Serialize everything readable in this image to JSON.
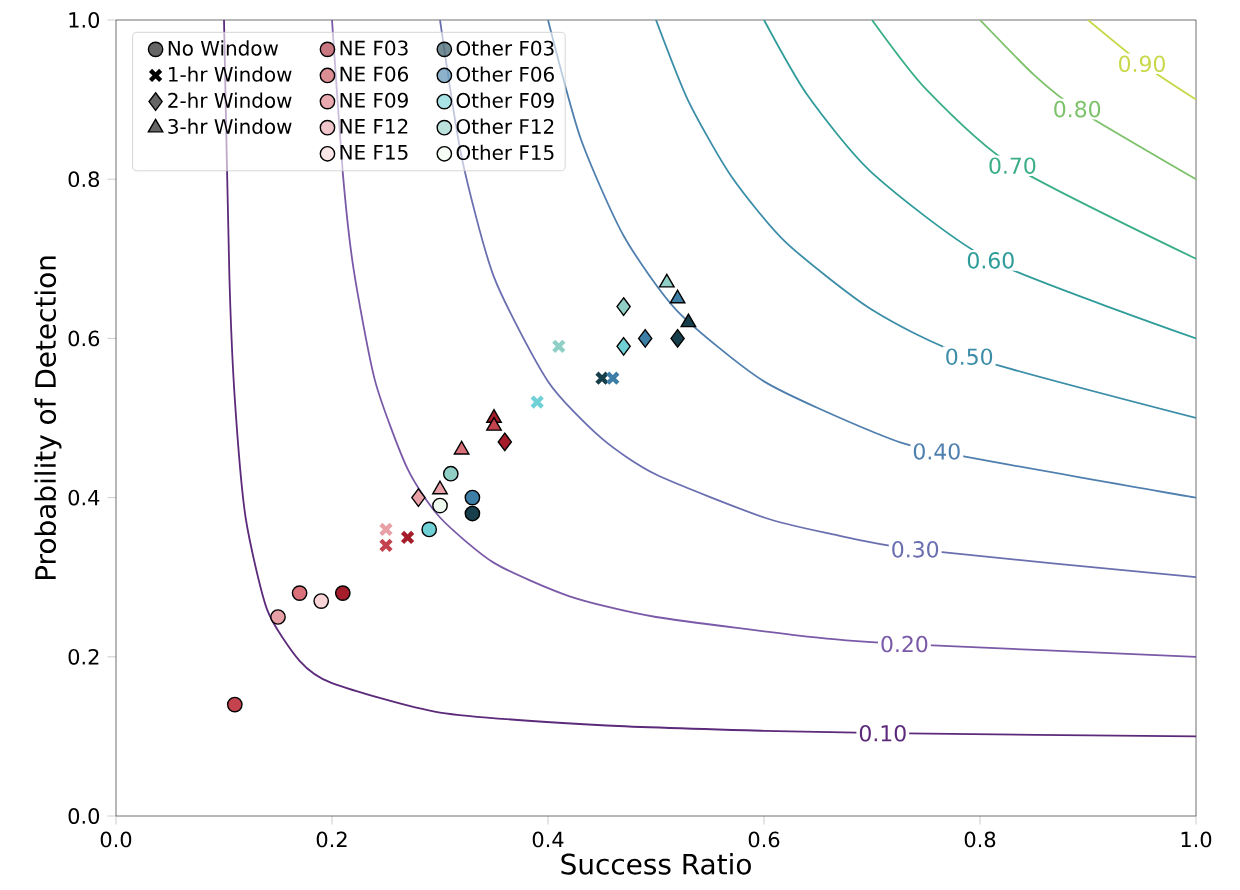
{
  "chart_data": {
    "type": "scatter",
    "xlabel": "Success Ratio",
    "ylabel": "Probability of Detection",
    "xlim": [
      0,
      1
    ],
    "ylim": [
      0,
      1
    ],
    "xticks": [
      {
        "value": 0,
        "label": "0.0"
      },
      {
        "value": 0.2,
        "label": "0.2"
      },
      {
        "value": 0.4,
        "label": "0.4"
      },
      {
        "value": 0.6,
        "label": "0.6"
      },
      {
        "value": 0.8,
        "label": "0.8"
      },
      {
        "value": 1,
        "label": "1.0"
      }
    ],
    "yticks": [
      {
        "value": 0,
        "label": "0.0"
      },
      {
        "value": 0.2,
        "label": "0.2"
      },
      {
        "value": 0.4,
        "label": "0.4"
      },
      {
        "value": 0.6,
        "label": "0.6"
      },
      {
        "value": 0.8,
        "label": "0.8"
      },
      {
        "value": 1,
        "label": "1.0"
      }
    ],
    "legend": "top left",
    "series": [
      {
        "type": "line",
        "name": "0.10",
        "color": "#5c2a7a",
        "x": [
          0.1,
          0.105,
          0.11,
          0.12,
          0.14,
          0.17,
          0.2,
          0.3,
          0.45,
          0.6,
          0.71,
          1.0
        ],
        "values": [
          1.0,
          0.677,
          0.524,
          0.375,
          0.259,
          0.195,
          0.167,
          0.13,
          0.114,
          0.107,
          0.104,
          0.1
        ]
      },
      {
        "type": "line",
        "name": "0.20",
        "color": "#7a5aa8",
        "x": [
          0.2,
          0.21,
          0.22,
          0.24,
          0.27,
          0.3,
          0.35,
          0.42,
          0.5,
          0.65,
          0.73,
          1.0
        ],
        "values": [
          1.0,
          0.808,
          0.687,
          0.546,
          0.436,
          0.375,
          0.318,
          0.276,
          0.25,
          0.224,
          0.216,
          0.2
        ]
      },
      {
        "type": "line",
        "name": "0.30",
        "color": "#6a6fb0",
        "x": [
          0.3,
          0.32,
          0.35,
          0.4,
          0.45,
          0.5,
          0.6,
          0.66,
          0.74,
          1.0
        ],
        "values": [
          1.0,
          0.828,
          0.677,
          0.546,
          0.474,
          0.429,
          0.375,
          0.355,
          0.335,
          0.3
        ]
      },
      {
        "type": "line",
        "name": "0.40",
        "color": "#4f7fae",
        "x": [
          0.4,
          0.43,
          0.47,
          0.52,
          0.6,
          0.7,
          0.76,
          1.0
        ],
        "values": [
          1.0,
          0.852,
          0.729,
          0.634,
          0.546,
          0.483,
          0.458,
          0.4
        ]
      },
      {
        "type": "line",
        "name": "0.50",
        "color": "#3b8da8",
        "x": [
          0.5,
          0.53,
          0.57,
          0.62,
          0.7,
          0.79,
          1.0
        ],
        "values": [
          1.0,
          0.898,
          0.803,
          0.721,
          0.636,
          0.577,
          0.5
        ]
      },
      {
        "type": "line",
        "name": "0.60",
        "color": "#2f9c9a",
        "x": [
          0.6,
          0.64,
          0.7,
          0.81,
          1.0
        ],
        "values": [
          1.0,
          0.906,
          0.808,
          0.698,
          0.6
        ]
      },
      {
        "type": "line",
        "name": "0.70",
        "color": "#3aae86",
        "x": [
          0.7,
          0.75,
          0.83,
          1.0
        ],
        "values": [
          1.0,
          0.913,
          0.817,
          0.7
        ]
      },
      {
        "type": "line",
        "name": "0.80",
        "color": "#7cc26a",
        "x": [
          0.8,
          0.85,
          0.89,
          1.0
        ],
        "values": [
          1.0,
          0.931,
          0.888,
          0.8
        ]
      },
      {
        "type": "line",
        "name": "0.90",
        "color": "#c8d84a",
        "x": [
          0.9,
          0.95,
          1.0
        ],
        "values": [
          1.0,
          0.945,
          0.9
        ]
      },
      {
        "name": "No Window",
        "color": "#000000",
        "marker": "circle"
      },
      {
        "name": "1-hr Window",
        "color": "#000000",
        "marker": "cross"
      },
      {
        "name": "2-hr Window",
        "color": "#000000",
        "marker": "diamond"
      },
      {
        "name": "3-hr Window",
        "color": "#000000",
        "marker": "triangle"
      },
      {
        "name": "NE F03",
        "color": "#a51c2b",
        "marker": "circle",
        "x": [
          0.21
        ],
        "values": [
          0.28
        ]
      },
      {
        "name": "NE F06",
        "color": "#c4434f",
        "marker": "circle",
        "x": [
          0.11
        ],
        "values": [
          0.14
        ]
      },
      {
        "name": "NE F09",
        "color": "#d9707a",
        "marker": "circle",
        "x": [
          0.17
        ],
        "values": [
          0.28
        ]
      },
      {
        "name": "NE F12",
        "color": "#e8a0a6",
        "marker": "circle",
        "x": [
          0.15
        ],
        "values": [
          0.25
        ]
      },
      {
        "name": "NE F15",
        "color": "#f9d5d7",
        "marker": "circle",
        "x": [
          0.19
        ],
        "values": [
          0.27
        ]
      },
      {
        "name": "Other F03",
        "color": "#173f4b",
        "marker": "circle",
        "x": [
          0.33
        ],
        "values": [
          0.38
        ]
      },
      {
        "name": "Other F06",
        "color": "#3d7ea6",
        "marker": "circle",
        "x": [
          0.33
        ],
        "values": [
          0.4
        ]
      },
      {
        "name": "Other F09",
        "color": "#6fd0d6",
        "marker": "circle",
        "x": [
          0.29
        ],
        "values": [
          0.36
        ]
      },
      {
        "name": "Other F12",
        "color": "#8fcfc6",
        "marker": "circle",
        "x": [
          0.31
        ],
        "values": [
          0.43
        ]
      },
      {
        "name": "Other F15",
        "color": "#eefbee",
        "marker": "circle",
        "x": [
          0.3
        ],
        "values": [
          0.39
        ]
      },
      {
        "color": "#a51c2b",
        "marker": "cross",
        "x": [
          0.27
        ],
        "values": [
          0.35
        ]
      },
      {
        "color": "#a51c2b",
        "marker": "diamond",
        "x": [
          0.36
        ],
        "values": [
          0.47
        ]
      },
      {
        "color": "#a51c2b",
        "marker": "triangle",
        "x": [
          0.35
        ],
        "values": [
          0.5
        ]
      },
      {
        "color": "#c4434f",
        "marker": "cross",
        "x": [
          0.25
        ],
        "values": [
          0.34
        ]
      },
      {
        "color": "#c4434f",
        "marker": "triangle",
        "x": [
          0.35
        ],
        "values": [
          0.49
        ]
      },
      {
        "color": "#d9707a",
        "marker": "triangle",
        "x": [
          0.32
        ],
        "values": [
          0.46
        ]
      },
      {
        "color": "#e8a0a6",
        "marker": "cross",
        "x": [
          0.25
        ],
        "values": [
          0.36
        ]
      },
      {
        "color": "#e8a0a6",
        "marker": "diamond",
        "x": [
          0.28
        ],
        "values": [
          0.4
        ]
      },
      {
        "color": "#e8a0a6",
        "marker": "triangle",
        "x": [
          0.3
        ],
        "values": [
          0.41
        ]
      },
      {
        "color": "#173f4b",
        "marker": "cross",
        "x": [
          0.45
        ],
        "values": [
          0.55
        ]
      },
      {
        "color": "#173f4b",
        "marker": "diamond",
        "x": [
          0.52
        ],
        "values": [
          0.6
        ]
      },
      {
        "color": "#173f4b",
        "marker": "triangle",
        "x": [
          0.53
        ],
        "values": [
          0.62
        ]
      },
      {
        "color": "#3d7ea6",
        "marker": "cross",
        "x": [
          0.46
        ],
        "values": [
          0.55
        ]
      },
      {
        "color": "#3d7ea6",
        "marker": "diamond",
        "x": [
          0.49
        ],
        "values": [
          0.6
        ]
      },
      {
        "color": "#3d7ea6",
        "marker": "triangle",
        "x": [
          0.52
        ],
        "values": [
          0.65
        ]
      },
      {
        "color": "#6fd0d6",
        "marker": "cross",
        "x": [
          0.39
        ],
        "values": [
          0.52
        ]
      },
      {
        "color": "#6fd0d6",
        "marker": "diamond",
        "x": [
          0.47
        ],
        "values": [
          0.59
        ]
      },
      {
        "color": "#8fcfc6",
        "marker": "cross",
        "x": [
          0.41
        ],
        "values": [
          0.59
        ]
      },
      {
        "color": "#8fcfc6",
        "marker": "diamond",
        "x": [
          0.47
        ],
        "values": [
          0.64
        ]
      },
      {
        "color": "#8fcfc6",
        "marker": "triangle",
        "x": [
          0.51
        ],
        "values": [
          0.67
        ]
      }
    ]
  }
}
